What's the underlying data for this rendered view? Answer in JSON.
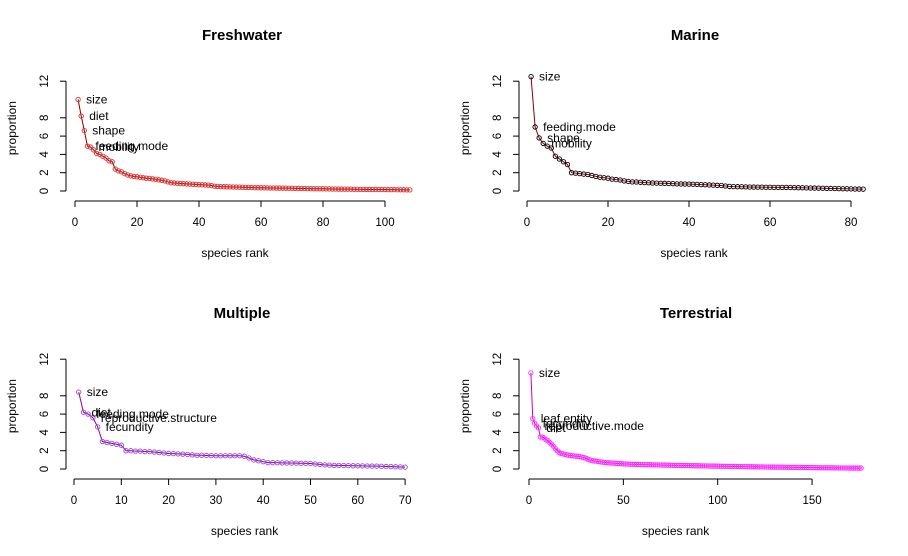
{
  "chart_data": [
    {
      "type": "line",
      "title": "Freshwater",
      "xlabel": "species rank",
      "ylabel": "proportion",
      "xlim": [
        1,
        108
      ],
      "ylim": [
        0,
        12
      ],
      "xticks": [
        "0",
        "20",
        "40",
        "60",
        "80",
        "100"
      ],
      "yticks": [
        "0",
        "2",
        "4",
        "6",
        "8",
        "12"
      ],
      "line_color": "#8b0000",
      "point_color": "#e03030",
      "values": [
        10.0,
        8.2,
        6.6,
        4.9,
        4.8,
        4.5,
        4.1,
        4.0,
        3.8,
        3.6,
        3.3,
        3.2,
        2.4,
        2.2,
        2.1,
        1.9,
        1.75,
        1.65,
        1.6,
        1.55,
        1.5,
        1.45,
        1.4,
        1.38,
        1.32,
        1.28,
        1.22,
        1.18,
        1.1,
        1.0,
        0.9,
        0.88,
        0.85,
        0.82,
        0.8,
        0.78,
        0.76,
        0.74,
        0.72,
        0.7,
        0.68,
        0.66,
        0.64,
        0.6,
        0.52,
        0.5,
        0.48,
        0.47,
        0.46,
        0.45,
        0.44,
        0.43,
        0.42,
        0.41,
        0.4,
        0.39,
        0.38,
        0.37,
        0.36,
        0.35,
        0.35,
        0.34,
        0.33,
        0.33,
        0.32,
        0.32,
        0.31,
        0.31,
        0.3,
        0.3,
        0.29,
        0.28,
        0.27,
        0.27,
        0.26,
        0.26,
        0.25,
        0.25,
        0.24,
        0.24,
        0.23,
        0.23,
        0.22,
        0.22,
        0.21,
        0.21,
        0.2,
        0.2,
        0.2,
        0.19,
        0.19,
        0.18,
        0.18,
        0.18,
        0.17,
        0.17,
        0.17,
        0.16,
        0.16,
        0.16,
        0.15,
        0.15,
        0.15,
        0.14,
        0.14,
        0.13,
        0.12,
        0.12
      ],
      "annotations": [
        {
          "label": "size",
          "rank": 1
        },
        {
          "label": "diet",
          "rank": 2
        },
        {
          "label": "shape",
          "rank": 3
        },
        {
          "label": "feeding.mode",
          "rank": 4
        },
        {
          "label": "mobility",
          "rank": 5
        }
      ]
    },
    {
      "type": "line",
      "title": "Marine",
      "xlabel": "species rank",
      "ylabel": "proportion",
      "xlim": [
        1,
        83
      ],
      "ylim": [
        0,
        12
      ],
      "xticks": [
        "0",
        "20",
        "40",
        "60",
        "80"
      ],
      "yticks": [
        "0",
        "2",
        "4",
        "6",
        "8",
        "12"
      ],
      "line_color": "#8b0000",
      "point_color": "#000000",
      "values": [
        12.5,
        7.0,
        5.8,
        5.2,
        4.9,
        4.7,
        3.8,
        3.5,
        3.2,
        2.9,
        2.0,
        1.95,
        1.9,
        1.85,
        1.8,
        1.7,
        1.6,
        1.5,
        1.45,
        1.4,
        1.3,
        1.25,
        1.2,
        1.1,
        1.05,
        1.0,
        0.98,
        0.95,
        0.92,
        0.9,
        0.88,
        0.86,
        0.85,
        0.84,
        0.82,
        0.8,
        0.78,
        0.77,
        0.76,
        0.75,
        0.74,
        0.72,
        0.7,
        0.68,
        0.66,
        0.64,
        0.62,
        0.6,
        0.55,
        0.5,
        0.48,
        0.47,
        0.46,
        0.45,
        0.44,
        0.43,
        0.42,
        0.42,
        0.41,
        0.41,
        0.4,
        0.4,
        0.39,
        0.39,
        0.38,
        0.37,
        0.36,
        0.35,
        0.34,
        0.33,
        0.32,
        0.31,
        0.3,
        0.29,
        0.28,
        0.27,
        0.26,
        0.25,
        0.24,
        0.23,
        0.22,
        0.21,
        0.2
      ],
      "annotations": [
        {
          "label": "size",
          "rank": 1
        },
        {
          "label": "feeding.mode",
          "rank": 2
        },
        {
          "label": "shape",
          "rank": 3
        },
        {
          "label": "mobility",
          "rank": 4
        }
      ]
    },
    {
      "type": "line",
      "title": "Multiple",
      "xlabel": "species rank",
      "ylabel": "proportion",
      "xlim": [
        1,
        70
      ],
      "ylim": [
        0,
        12
      ],
      "xticks": [
        "0",
        "10",
        "20",
        "30",
        "40",
        "50",
        "60",
        "70"
      ],
      "yticks": [
        "0",
        "2",
        "4",
        "6",
        "8",
        "12"
      ],
      "line_color": "#8b008b",
      "point_color": "#9a4ae0",
      "values": [
        8.4,
        6.2,
        6.0,
        5.6,
        4.6,
        3.0,
        2.9,
        2.8,
        2.7,
        2.6,
        2.0,
        2.0,
        1.95,
        1.95,
        1.9,
        1.9,
        1.85,
        1.8,
        1.75,
        1.7,
        1.68,
        1.65,
        1.62,
        1.6,
        1.55,
        1.5,
        1.5,
        1.48,
        1.46,
        1.45,
        1.45,
        1.45,
        1.45,
        1.45,
        1.45,
        1.4,
        1.2,
        1.0,
        0.9,
        0.8,
        0.7,
        0.7,
        0.68,
        0.67,
        0.66,
        0.65,
        0.64,
        0.63,
        0.62,
        0.6,
        0.55,
        0.5,
        0.45,
        0.42,
        0.4,
        0.39,
        0.38,
        0.37,
        0.36,
        0.35,
        0.34,
        0.33,
        0.32,
        0.31,
        0.3,
        0.28,
        0.26,
        0.24,
        0.22,
        0.2
      ],
      "annotations": [
        {
          "label": "size",
          "rank": 1
        },
        {
          "label": "diet",
          "rank": 2
        },
        {
          "label": "feeding.mode",
          "rank": 3
        },
        {
          "label": "reproductive.structure",
          "rank": 4
        },
        {
          "label": "fecundity",
          "rank": 5
        }
      ]
    },
    {
      "type": "line",
      "title": "Terrestrial",
      "xlabel": "species rank",
      "ylabel": "proportion",
      "xlim": [
        1,
        176
      ],
      "ylim": [
        0,
        12
      ],
      "xticks": [
        "0",
        "50",
        "100",
        "150"
      ],
      "yticks": [
        "0",
        "2",
        "4",
        "6",
        "8",
        "12"
      ],
      "line_color": "#cc00cc",
      "point_color": "#ff33ff",
      "values": [
        10.5,
        5.5,
        5.0,
        4.7,
        4.5,
        3.5,
        3.5,
        3.4,
        3.2,
        3.1,
        2.9,
        2.7,
        2.5,
        2.2,
        2.0,
        1.8,
        1.7,
        1.65,
        1.6,
        1.55,
        1.5,
        1.48,
        1.45,
        1.42,
        1.4,
        1.38,
        1.35,
        1.3,
        1.25,
        1.2,
        1.1,
        1.0,
        0.95,
        0.9,
        0.88,
        0.85,
        0.8,
        0.78,
        0.75,
        0.72,
        0.7,
        0.68,
        0.66,
        0.65,
        0.64,
        0.62,
        0.6,
        0.6,
        0.58,
        0.56,
        0.55,
        0.54,
        0.53,
        0.52,
        0.52,
        0.51,
        0.5,
        0.5,
        0.49,
        0.49,
        0.48,
        0.48,
        0.47,
        0.47,
        0.46,
        0.46,
        0.45,
        0.45,
        0.44,
        0.44,
        0.43,
        0.43,
        0.42,
        0.42,
        0.41,
        0.41,
        0.4,
        0.4,
        0.4,
        0.39,
        0.39,
        0.38,
        0.38,
        0.38,
        0.37,
        0.37,
        0.36,
        0.36,
        0.36,
        0.35,
        0.35,
        0.34,
        0.34,
        0.34,
        0.33,
        0.33,
        0.32,
        0.32,
        0.32,
        0.31,
        0.31,
        0.3,
        0.3,
        0.3,
        0.29,
        0.29,
        0.28,
        0.28,
        0.28,
        0.27,
        0.27,
        0.27,
        0.26,
        0.26,
        0.26,
        0.25,
        0.25,
        0.25,
        0.24,
        0.24,
        0.24,
        0.23,
        0.23,
        0.23,
        0.22,
        0.22,
        0.22,
        0.21,
        0.21,
        0.21,
        0.2,
        0.2,
        0.2,
        0.2,
        0.19,
        0.19,
        0.19,
        0.18,
        0.18,
        0.18,
        0.18,
        0.17,
        0.17,
        0.17,
        0.17,
        0.16,
        0.16,
        0.16,
        0.16,
        0.15,
        0.15,
        0.15,
        0.15,
        0.14,
        0.14,
        0.14,
        0.14,
        0.13,
        0.13,
        0.13,
        0.13,
        0.12,
        0.12,
        0.12,
        0.12,
        0.11,
        0.11,
        0.11,
        0.11,
        0.1,
        0.1,
        0.1,
        0.1,
        0.1,
        0.1,
        0.1
      ],
      "annotations": [
        {
          "label": "size",
          "rank": 1
        },
        {
          "label": "leaf.entity",
          "rank": 2
        },
        {
          "label": "fecundity",
          "rank": 3
        },
        {
          "label": "reproductive.mode",
          "rank": 4
        },
        {
          "label": "diet",
          "rank": 5
        }
      ]
    }
  ]
}
